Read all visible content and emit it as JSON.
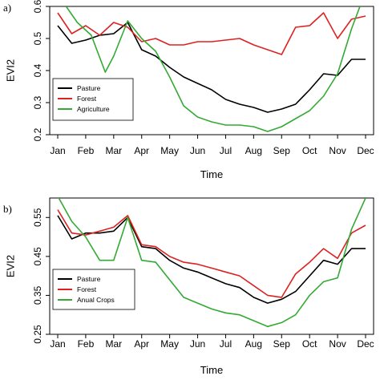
{
  "chart_data": [
    {
      "type": "line",
      "panel_label": "a)",
      "xlabel": "Time",
      "ylabel": "EVI2",
      "categories": [
        "Jan",
        "Feb",
        "Mar",
        "Apr",
        "May",
        "Jun",
        "Jul",
        "Aug",
        "Sep",
        "Oct",
        "Nov",
        "Dec"
      ],
      "ylim": [
        0.2,
        0.6
      ],
      "yticks": [
        "0.2",
        "0.3",
        "0.4",
        "0.5",
        "0.6"
      ],
      "ytick_values": [
        0.2,
        0.3,
        0.4,
        0.5,
        0.6
      ],
      "legend": "bottom-left",
      "grid": false,
      "series": [
        {
          "name": "Pasture",
          "color": "#000000",
          "x": [
            1,
            1.5,
            2,
            2.5,
            3,
            3.5,
            4,
            4.5,
            5,
            5.5,
            6,
            6.5,
            7,
            7.5,
            8,
            8.5,
            9,
            9.5,
            10,
            10.5,
            11,
            11.5,
            12
          ],
          "values": [
            0.54,
            0.485,
            0.495,
            0.51,
            0.515,
            0.55,
            0.465,
            0.445,
            0.41,
            0.38,
            0.36,
            0.34,
            0.31,
            0.295,
            0.285,
            0.27,
            0.28,
            0.295,
            0.34,
            0.39,
            0.385,
            0.435,
            0.435
          ]
        },
        {
          "name": "Forest",
          "color": "#dd2222",
          "x": [
            1,
            1.5,
            2,
            2.5,
            3,
            3.5,
            4,
            4.5,
            5,
            5.5,
            6,
            6.5,
            7,
            7.5,
            8,
            8.5,
            9,
            9.5,
            10,
            10.5,
            11,
            11.5,
            12
          ],
          "values": [
            0.58,
            0.515,
            0.54,
            0.51,
            0.55,
            0.535,
            0.49,
            0.5,
            0.48,
            0.48,
            0.49,
            0.49,
            0.495,
            0.5,
            0.48,
            0.465,
            0.45,
            0.535,
            0.54,
            0.58,
            0.5,
            0.56,
            0.57
          ]
        },
        {
          "name": "Agriculture",
          "color": "#33aa33",
          "x": [
            1.3,
            1.7,
            2.2,
            2.7,
            3,
            3.5,
            4,
            4.5,
            5,
            5.5,
            6,
            6.5,
            7,
            7.5,
            8,
            8.5,
            9,
            9.5,
            10,
            10.5,
            11,
            11.5,
            11.8
          ],
          "values": [
            0.6,
            0.55,
            0.51,
            0.395,
            0.445,
            0.555,
            0.5,
            0.46,
            0.38,
            0.29,
            0.255,
            0.24,
            0.23,
            0.23,
            0.225,
            0.21,
            0.225,
            0.25,
            0.275,
            0.32,
            0.39,
            0.53,
            0.6
          ]
        }
      ]
    },
    {
      "type": "line",
      "panel_label": "b)",
      "xlabel": "Time",
      "ylabel": "EVI2",
      "categories": [
        "Jan",
        "Feb",
        "Mar",
        "Apr",
        "May",
        "Jun",
        "Jul",
        "Aug",
        "Sep",
        "Oct",
        "Nov",
        "Dec"
      ],
      "ylim": [
        0.25,
        0.6
      ],
      "yticks": [
        "0.25",
        "0.35",
        "0.45",
        "0.55"
      ],
      "ytick_values": [
        0.25,
        0.35,
        0.45,
        0.55
      ],
      "legend": "bottom-left",
      "grid": false,
      "series": [
        {
          "name": "Pasture",
          "color": "#000000",
          "x": [
            1,
            1.5,
            2,
            2.5,
            3,
            3.5,
            4,
            4.5,
            5,
            5.5,
            6,
            6.5,
            7,
            7.5,
            8,
            8.5,
            9,
            9.5,
            10,
            10.5,
            11,
            11.5,
            12
          ],
          "values": [
            0.555,
            0.495,
            0.51,
            0.51,
            0.515,
            0.55,
            0.475,
            0.47,
            0.44,
            0.42,
            0.41,
            0.395,
            0.38,
            0.37,
            0.345,
            0.33,
            0.34,
            0.36,
            0.4,
            0.44,
            0.43,
            0.47,
            0.47
          ]
        },
        {
          "name": "Forest",
          "color": "#dd2222",
          "x": [
            1,
            1.5,
            2,
            2.5,
            3,
            3.5,
            4,
            4.5,
            5,
            5.5,
            6,
            6.5,
            7,
            7.5,
            8,
            8.5,
            9,
            9.5,
            10,
            10.5,
            11,
            11.5,
            12
          ],
          "values": [
            0.57,
            0.51,
            0.505,
            0.515,
            0.525,
            0.555,
            0.48,
            0.475,
            0.45,
            0.435,
            0.43,
            0.42,
            0.41,
            0.4,
            0.375,
            0.35,
            0.345,
            0.405,
            0.435,
            0.47,
            0.445,
            0.51,
            0.53
          ]
        },
        {
          "name": "Anual Crops",
          "color": "#33aa33",
          "x": [
            1,
            1.5,
            2,
            2.5,
            3,
            3.5,
            4,
            4.5,
            5,
            5.5,
            6,
            6.5,
            7,
            7.5,
            8,
            8.5,
            9,
            9.5,
            10,
            10.5,
            11,
            11.5,
            12
          ],
          "values": [
            0.605,
            0.54,
            0.5,
            0.44,
            0.44,
            0.55,
            0.44,
            0.435,
            0.39,
            0.345,
            0.33,
            0.315,
            0.305,
            0.3,
            0.285,
            0.27,
            0.28,
            0.3,
            0.35,
            0.385,
            0.395,
            0.52,
            0.6
          ]
        }
      ]
    }
  ]
}
